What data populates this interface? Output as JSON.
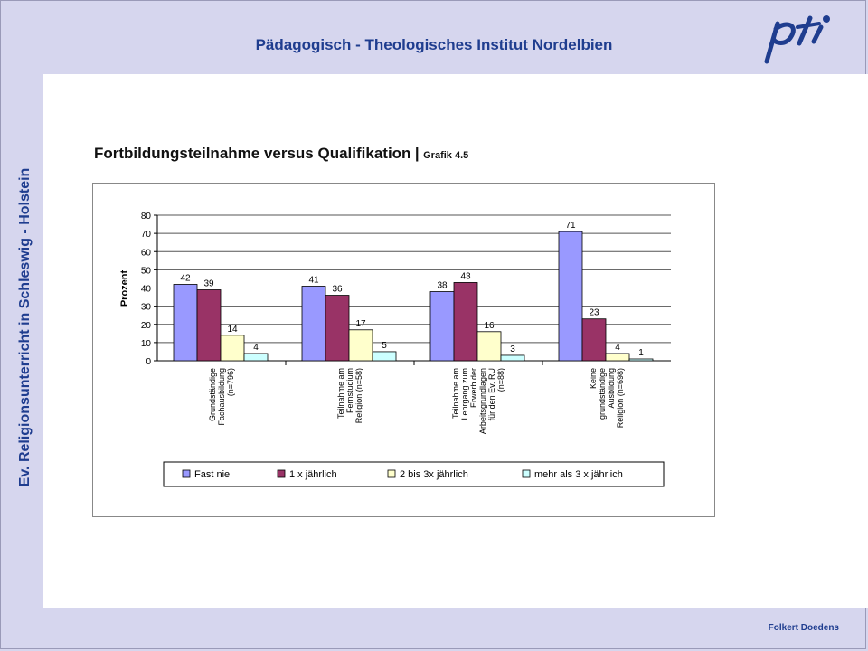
{
  "header": {
    "title": "Pädagogisch - Theologisches Institut Nordelbien"
  },
  "logo": {
    "name": "pti-logo",
    "text": "pti"
  },
  "sidebar": {
    "vertical_text": "Ev. Religionsunterricht in Schleswig - Holstein"
  },
  "heading": {
    "main": "Fortbildungsteilnahme versus Qualifikation",
    "separator": "|",
    "sub": "Grafik 4.5"
  },
  "footer": {
    "author": "Folkert Doedens"
  },
  "chart_data": {
    "type": "bar",
    "ylabel": "Prozent",
    "xlabel": "",
    "ylim": [
      0,
      80
    ],
    "yticks": [
      0,
      10,
      20,
      30,
      40,
      50,
      60,
      70,
      80
    ],
    "grid": true,
    "legend_position": "bottom",
    "categories": [
      [
        "Grundständige",
        "Fachausbildung",
        "(n=796)"
      ],
      [
        "Teilnahme am",
        "Fernstudium",
        "Religion (n=58)"
      ],
      [
        "Teilnahme am",
        "Lehrgang zum",
        "Erwerb der",
        "Arbeitsgrundlagen",
        "für den Ev. RU",
        "(n=88)"
      ],
      [
        "Keine",
        "grundständige",
        "Ausbildung",
        "Religion (n=698)"
      ]
    ],
    "series": [
      {
        "name": "Fast nie",
        "color": "#9999ff",
        "values": [
          42,
          41,
          38,
          71
        ]
      },
      {
        "name": "1 x jährlich",
        "color": "#993366",
        "values": [
          39,
          36,
          43,
          23
        ]
      },
      {
        "name": "2 bis 3x jährlich",
        "color": "#ffffcc",
        "values": [
          14,
          17,
          16,
          4
        ]
      },
      {
        "name": "mehr als 3 x jährlich",
        "color": "#ccffff",
        "values": [
          4,
          5,
          3,
          1
        ]
      }
    ]
  }
}
